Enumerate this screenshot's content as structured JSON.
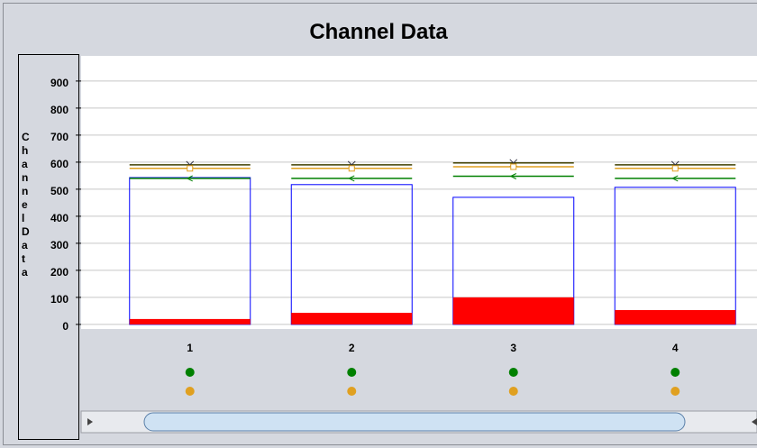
{
  "chart_data": {
    "type": "bar",
    "title": "Channel Data",
    "y_label": "Channel Data",
    "categories": [
      "1",
      "2",
      "3",
      "4"
    ],
    "series": [
      {
        "color": "#0000ff",
        "style": "outline",
        "values": [
          543,
          517,
          470,
          507
        ]
      },
      {
        "color": "#ff0000",
        "style": "filled",
        "values": [
          20,
          43,
          100,
          53
        ]
      }
    ],
    "reference_lines": [
      {
        "color": "#404000",
        "marker": "cross",
        "values": [
          590,
          590,
          597,
          590
        ]
      },
      {
        "color": "#e0a020",
        "marker": "square",
        "values": [
          577,
          577,
          583,
          577
        ]
      },
      {
        "color": "#008000",
        "marker": "triangle",
        "values": [
          540,
          540,
          548,
          540
        ]
      }
    ],
    "ylim": [
      -17,
      993
    ],
    "yticks": [
      0,
      100,
      200,
      300,
      400,
      500,
      600,
      700,
      800,
      900
    ],
    "grid": true
  }
}
